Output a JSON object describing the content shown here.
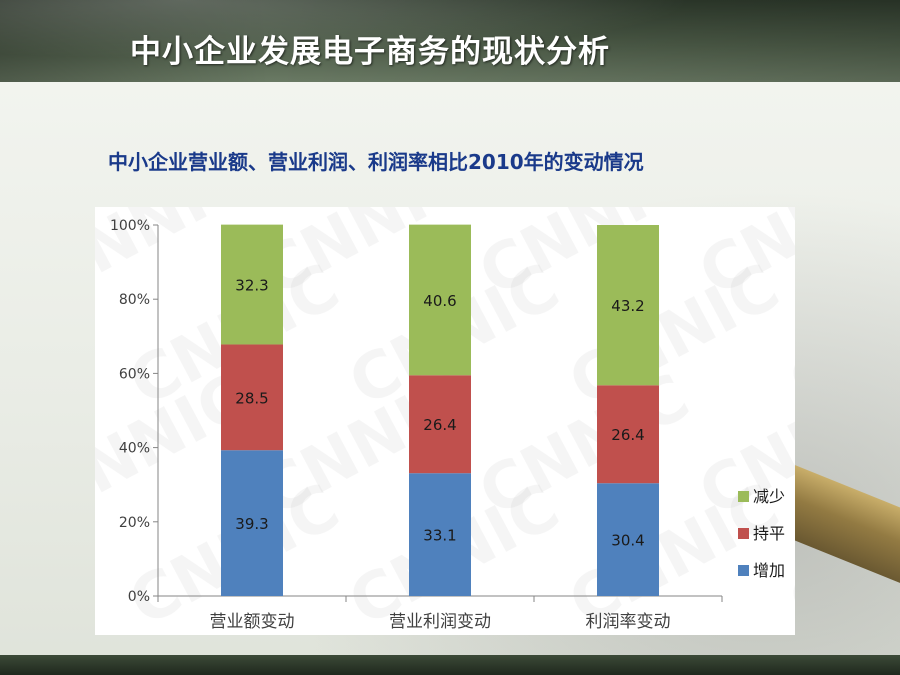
{
  "slide": {
    "title": "中小企业发展电子商务的现状分析"
  },
  "chart_data": {
    "type": "bar",
    "stacked": true,
    "title": "中小企业营业额、营业利润、利润率相比2010年的变动情况",
    "categories": [
      "营业额变动",
      "营业利润变动",
      "利润率变动"
    ],
    "series": [
      {
        "name": "增加",
        "values": [
          39.3,
          33.1,
          30.4
        ],
        "color": "#4f81bd"
      },
      {
        "name": "持平",
        "values": [
          28.5,
          26.4,
          26.4
        ],
        "color": "#c0504d"
      },
      {
        "name": "减少",
        "values": [
          32.3,
          40.6,
          43.2
        ],
        "color": "#9bbb59"
      }
    ],
    "ylim": [
      0,
      100
    ],
    "yticks": [
      "0%",
      "20%",
      "40%",
      "60%",
      "80%",
      "100%"
    ],
    "legend": "right",
    "watermark": "CNNIC"
  }
}
